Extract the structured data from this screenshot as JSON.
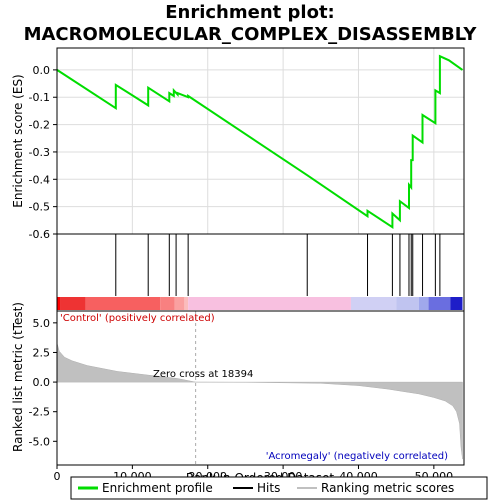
{
  "chart_data": {
    "type": "line",
    "title_line1": "Enrichment plot:",
    "title_line2": "MACROMOLECULAR_COMPLEX_DISASSEMBLY",
    "xlabel": "Rank in Ordered Dataset",
    "es_ylabel": "Enrichment score (ES)",
    "metric_ylabel": "Ranked list metric (tTest)",
    "xlim": [
      0,
      54000
    ],
    "es_ylim": [
      -0.6,
      0.08
    ],
    "metric_ylim": [
      -7.0,
      6.0
    ],
    "x_ticks": [
      0,
      10000,
      20000,
      30000,
      40000,
      50000
    ],
    "x_tick_labels": [
      "0",
      "10,000",
      "20,000",
      "30,000",
      "40,000",
      "50,000"
    ],
    "es_ticks": [
      0.0,
      -0.1,
      -0.2,
      -0.3,
      -0.4,
      -0.5,
      -0.6
    ],
    "es_tick_labels": [
      "0.0",
      "-0.1",
      "-0.2",
      "-0.3",
      "-0.4",
      "-0.5",
      "-0.6"
    ],
    "metric_ticks": [
      5.0,
      2.5,
      0.0,
      -2.5,
      -5.0
    ],
    "metric_tick_labels": [
      "5.0",
      "2.5",
      "0.0",
      "-2.5",
      "-5.0"
    ],
    "annotations": {
      "positive": "'Control' (positively correlated)",
      "negative": "'Acromegaly' (negatively correlated)",
      "zero_cross": "Zero cross at 18394"
    },
    "zero_cross": 18394,
    "series": [
      {
        "name": "Enrichment profile",
        "x": [
          0,
          7800,
          7800,
          12100,
          12100,
          14900,
          14900,
          15500,
          15500,
          16000,
          16000,
          17400,
          17400,
          33200,
          41200,
          41200,
          44500,
          44500,
          45500,
          45500,
          46700,
          46700,
          47000,
          47000,
          47200,
          47200,
          48500,
          48500,
          50200,
          50200,
          50800,
          50800,
          52000,
          53800
        ],
        "y": [
          0.0,
          -0.14,
          -0.055,
          -0.13,
          -0.065,
          -0.115,
          -0.085,
          -0.095,
          -0.075,
          -0.09,
          -0.085,
          -0.1,
          -0.095,
          -0.385,
          -0.535,
          -0.515,
          -0.575,
          -0.525,
          -0.55,
          -0.48,
          -0.505,
          -0.42,
          -0.43,
          -0.33,
          -0.33,
          -0.24,
          -0.265,
          -0.165,
          -0.195,
          -0.075,
          -0.085,
          0.05,
          0.035,
          0.0
        ]
      }
    ],
    "hits": [
      7800,
      12100,
      14900,
      15800,
      17400,
      33200,
      41200,
      44500,
      45500,
      46700,
      47000,
      47200,
      48500,
      50200,
      50800
    ],
    "metric_profile": {
      "x": [
        0,
        300,
        1000,
        2000,
        4000,
        8000,
        12000,
        16000,
        18394,
        25000,
        35000,
        40000,
        44000,
        46000,
        48000,
        50000,
        51500,
        52500,
        53000,
        53400,
        53600,
        53800
      ],
      "y": [
        3.3,
        2.6,
        2.1,
        1.8,
        1.4,
        0.9,
        0.6,
        0.3,
        0.0,
        -0.02,
        -0.1,
        -0.3,
        -0.6,
        -0.8,
        -1.0,
        -1.3,
        -1.6,
        -2.0,
        -2.5,
        -3.5,
        -5.5,
        -6.5
      ]
    },
    "legend": [
      "Enrichment profile",
      "Hits",
      "Ranking metric scores"
    ],
    "colors": {
      "profile": "#00dd00",
      "hits": "#000000",
      "metric_fill": "#c0c0c0",
      "zero_line": "#aaaaaa",
      "positive_text": "#cc0000",
      "negative_text": "#0000bb"
    },
    "color_bar": [
      {
        "from": 0,
        "to": 400,
        "color": "#ff0000"
      },
      {
        "from": 400,
        "to": 3800,
        "color": "#ee3333"
      },
      {
        "from": 3800,
        "to": 13700,
        "color": "#f76060"
      },
      {
        "from": 13700,
        "to": 15600,
        "color": "#f88080"
      },
      {
        "from": 15600,
        "to": 16900,
        "color": "#faa0a0"
      },
      {
        "from": 16900,
        "to": 17400,
        "color": "#fbbcbc"
      },
      {
        "from": 17400,
        "to": 39000,
        "color": "#f8c0e0"
      },
      {
        "from": 39000,
        "to": 45000,
        "color": "#d0d0f4"
      },
      {
        "from": 45000,
        "to": 48000,
        "color": "#c0c4f0"
      },
      {
        "from": 48000,
        "to": 49300,
        "color": "#a0a8ec"
      },
      {
        "from": 49300,
        "to": 52200,
        "color": "#6a6ee0"
      },
      {
        "from": 52200,
        "to": 53800,
        "color": "#1e1ec8"
      }
    ]
  }
}
